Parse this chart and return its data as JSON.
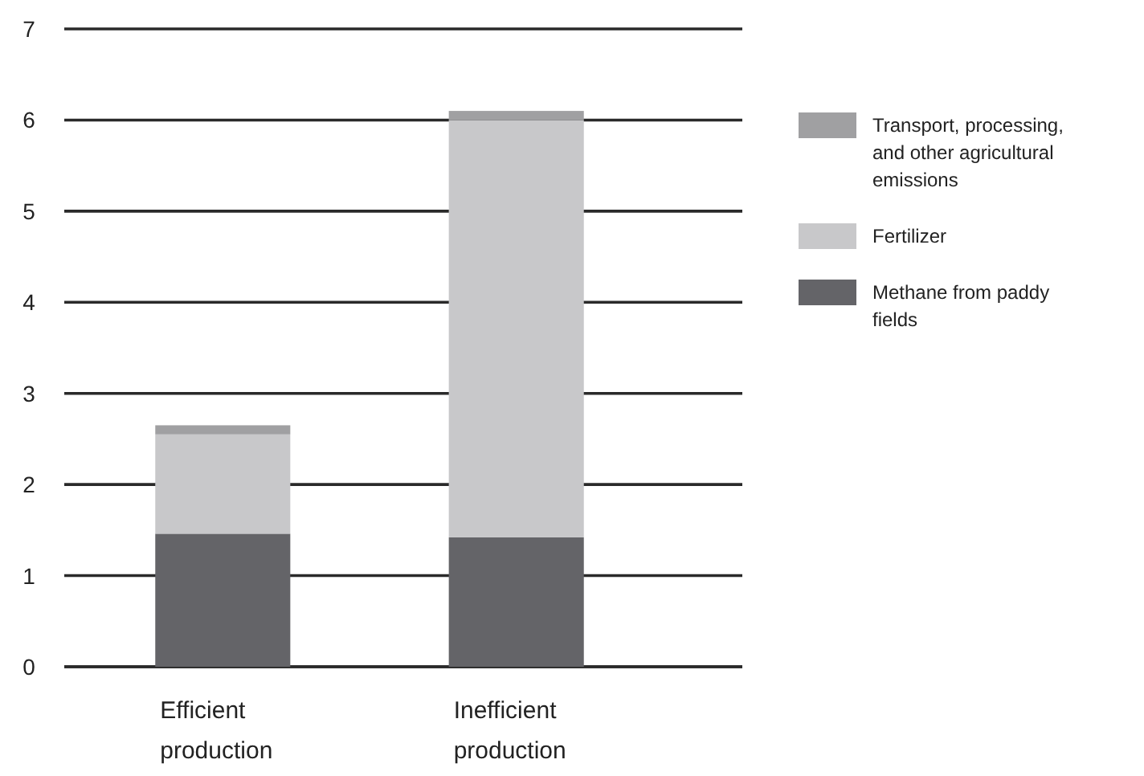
{
  "chart_data": {
    "type": "bar",
    "stacked": true,
    "categories": [
      "Efficient production",
      "Inefficient production"
    ],
    "series": [
      {
        "name": "Methane from paddy fields",
        "color": "#646468",
        "values": [
          1.46,
          1.42
        ]
      },
      {
        "name": "Fertilizer",
        "color": "#c8c8ca",
        "values": [
          1.09,
          4.58
        ]
      },
      {
        "name": "Transport, processing, and other agricultural emissions",
        "color": "#a0a0a2",
        "values": [
          0.1,
          0.1
        ]
      }
    ],
    "ylim": [
      0,
      7
    ],
    "yticks": [
      0,
      1,
      2,
      3,
      4,
      5,
      6,
      7
    ],
    "grid": "y",
    "legend": "right"
  }
}
